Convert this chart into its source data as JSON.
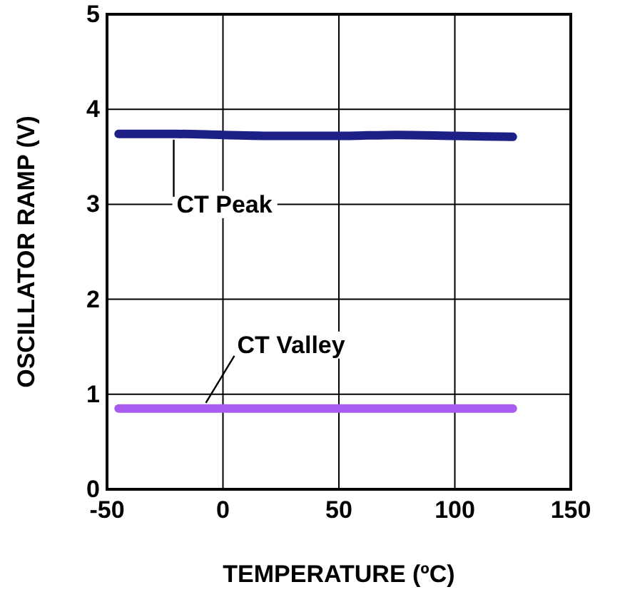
{
  "chart_data": {
    "type": "line",
    "xlabel": "TEMPERATURE (ºC)",
    "ylabel": "OSCILLATOR RAMP (V)",
    "x": [
      -45,
      -20,
      0,
      25,
      50,
      75,
      100,
      125
    ],
    "series": [
      {
        "name": "CT Peak",
        "color": "#1c1f86",
        "values": [
          3.74,
          3.74,
          3.73,
          3.72,
          3.72,
          3.73,
          3.72,
          3.71
        ]
      },
      {
        "name": "CT Valley",
        "color": "#a85cf0",
        "values": [
          0.85,
          0.85,
          0.85,
          0.85,
          0.85,
          0.85,
          0.85,
          0.85
        ]
      }
    ],
    "xlim": [
      -50,
      150
    ],
    "xticks": [
      -50,
      0,
      50,
      100,
      150
    ],
    "ylim": [
      0,
      5
    ],
    "yticks": [
      0,
      1,
      2,
      3,
      4,
      5
    ],
    "grid": true,
    "marker": "none",
    "line_style": "solid"
  }
}
